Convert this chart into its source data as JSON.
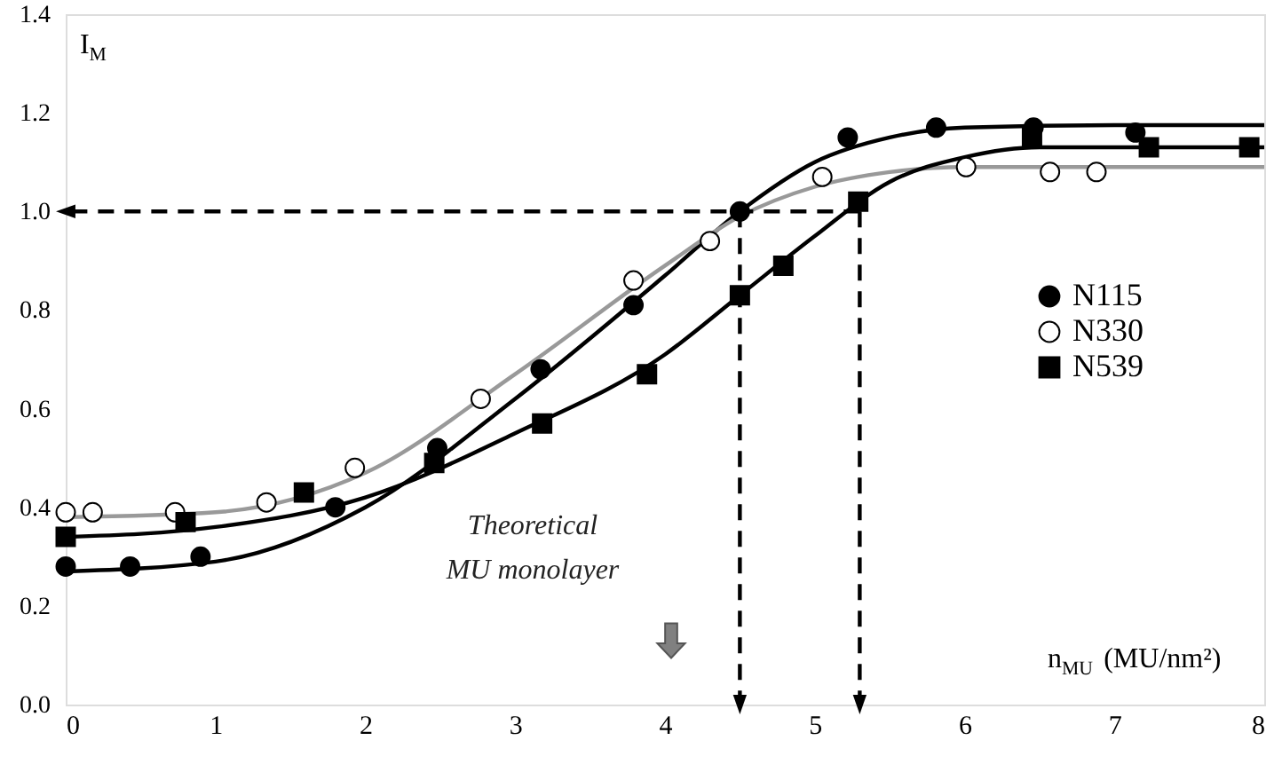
{
  "chart_data": {
    "type": "scatter",
    "xlabel": "n$_{MU}$ (MU/nm²)",
    "ylabel": "I$_{M}$",
    "xlim": [
      0,
      8
    ],
    "xticks": [
      0,
      1,
      2,
      3,
      4,
      5,
      6,
      7,
      8
    ],
    "ylim": [
      0,
      1.4
    ],
    "yticks": [
      {
        "value": 0,
        "label": "0.0"
      },
      0.2,
      0.4,
      0.6,
      0.8,
      {
        "value": 1,
        "label": "1.0"
      },
      1.2,
      1.4
    ],
    "grid": false,
    "legend": "right",
    "annotations": [
      "Theoretical\nMU monolayer"
    ],
    "series": [
      {
        "type": "line",
        "color": "#000000",
        "marker": "none",
        "line_style": "solid",
        "x": [
          0,
          1,
          2,
          3,
          4,
          4.5,
          5,
          5.5,
          6,
          7,
          8
        ],
        "values": [
          0.27,
          0.29,
          0.4,
          0.62,
          0.87,
          1.0,
          1.1,
          1.15,
          1.17,
          1.175,
          1.175
        ]
      },
      {
        "type": "line",
        "color": "#999999",
        "marker": "none",
        "line_style": "solid",
        "x": [
          0,
          1,
          2,
          3,
          4,
          4.5,
          5,
          5.5,
          6,
          7,
          8
        ],
        "values": [
          0.38,
          0.39,
          0.47,
          0.67,
          0.89,
          0.99,
          1.05,
          1.08,
          1.09,
          1.09,
          1.09
        ]
      },
      {
        "type": "line",
        "color": "#000000",
        "marker": "none",
        "line_style": "solid",
        "x": [
          0,
          1,
          2,
          3,
          4,
          4.5,
          5,
          5.5,
          6,
          6.5,
          7,
          8
        ],
        "values": [
          0.34,
          0.36,
          0.42,
          0.55,
          0.71,
          0.83,
          0.95,
          1.06,
          1.11,
          1.13,
          1.13,
          1.13
        ]
      },
      {
        "type": "line",
        "color": "#000000",
        "line_style": "dashed",
        "x": [
          5.3,
          0
        ],
        "values": [
          1.0,
          1.0
        ]
      },
      {
        "type": "line",
        "color": "#000000",
        "line_style": "dashed",
        "x": [
          4.5,
          4.5
        ],
        "values": [
          1.0,
          0.0
        ]
      },
      {
        "type": "line",
        "color": "#000000",
        "line_style": "dashed",
        "x": [
          5.3,
          5.3
        ],
        "values": [
          1.0,
          0.0
        ]
      },
      {
        "name": "N115",
        "color": "#000000",
        "marker": "circle",
        "x": [
          0,
          0.43,
          0.9,
          1.8,
          2.48,
          3.17,
          3.79,
          4.5,
          5.22,
          5.81,
          6.46,
          7.14
        ],
        "values": [
          0.28,
          0.28,
          0.3,
          0.4,
          0.52,
          0.68,
          0.81,
          1.0,
          1.15,
          1.17,
          1.17,
          1.16
        ]
      },
      {
        "name": "N330",
        "color": "#ffffff",
        "marker": "circle",
        "x": [
          0,
          0.18,
          0.73,
          1.34,
          1.93,
          2.77,
          3.79,
          4.3,
          5.05,
          6.01,
          6.57,
          6.88
        ],
        "values": [
          0.39,
          0.39,
          0.39,
          0.41,
          0.48,
          0.62,
          0.86,
          0.94,
          1.07,
          1.09,
          1.08,
          1.08
        ]
      },
      {
        "name": "N539",
        "color": "#000000",
        "marker": "square",
        "x": [
          0,
          0.8,
          1.59,
          2.46,
          3.18,
          3.88,
          4.5,
          4.79,
          5.29,
          6.45,
          7.23,
          7.9
        ],
        "values": [
          0.34,
          0.37,
          0.43,
          0.49,
          0.57,
          0.67,
          0.83,
          0.89,
          1.02,
          1.15,
          1.13,
          1.13
        ]
      }
    ]
  }
}
